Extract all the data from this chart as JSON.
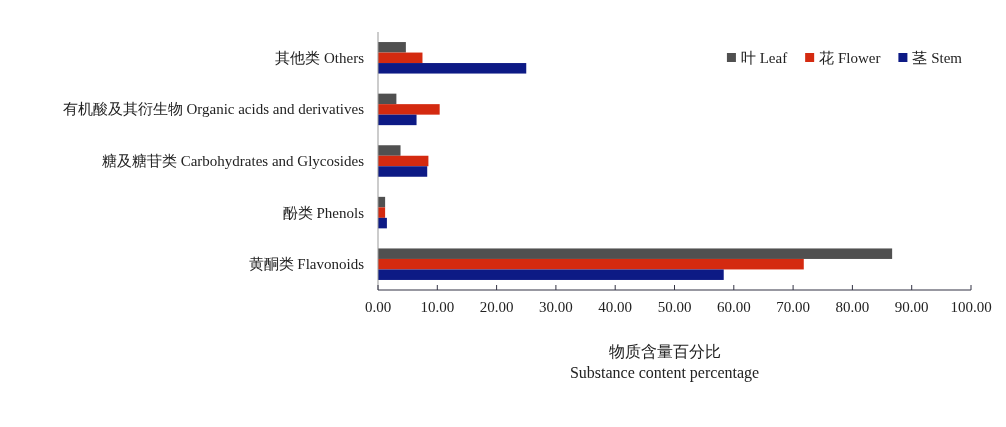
{
  "chart_data": {
    "type": "bar",
    "orientation": "horizontal",
    "categories": [
      "其他类 Others",
      "有机酸及其衍生物 Organic acids and derivatives",
      "糖及糖苷类 Carbohydrates and Glycosides",
      "酚类 Phenols",
      "黄酮类 Flavonoids"
    ],
    "series": [
      {
        "name": "叶 Leaf",
        "color": "#505050",
        "values": [
          4.7,
          3.1,
          3.8,
          1.2,
          86.7
        ]
      },
      {
        "name": "花 Flower",
        "color": "#d42a10",
        "values": [
          7.5,
          10.4,
          8.5,
          1.2,
          71.8
        ]
      },
      {
        "name": "茎 Stem",
        "color": "#0d1a85",
        "values": [
          25.0,
          6.5,
          8.3,
          1.5,
          58.3
        ]
      }
    ],
    "xlim": [
      0,
      100
    ],
    "xticks": [
      {
        "value": 0,
        "label": "0.00"
      },
      {
        "value": 10,
        "label": "10.00"
      },
      {
        "value": 20,
        "label": "20.00"
      },
      {
        "value": 30,
        "label": "30.00"
      },
      {
        "value": 40,
        "label": "40.00"
      },
      {
        "value": 50,
        "label": "50.00"
      },
      {
        "value": 60,
        "label": "60.00"
      },
      {
        "value": 70,
        "label": "70.00"
      },
      {
        "value": 80,
        "label": "80.00"
      },
      {
        "value": 90,
        "label": "90.00"
      },
      {
        "value": 100,
        "label": "100.00"
      }
    ],
    "xlabel": "物质含量百分比\nSubstance content percentage",
    "legend": "top right"
  }
}
